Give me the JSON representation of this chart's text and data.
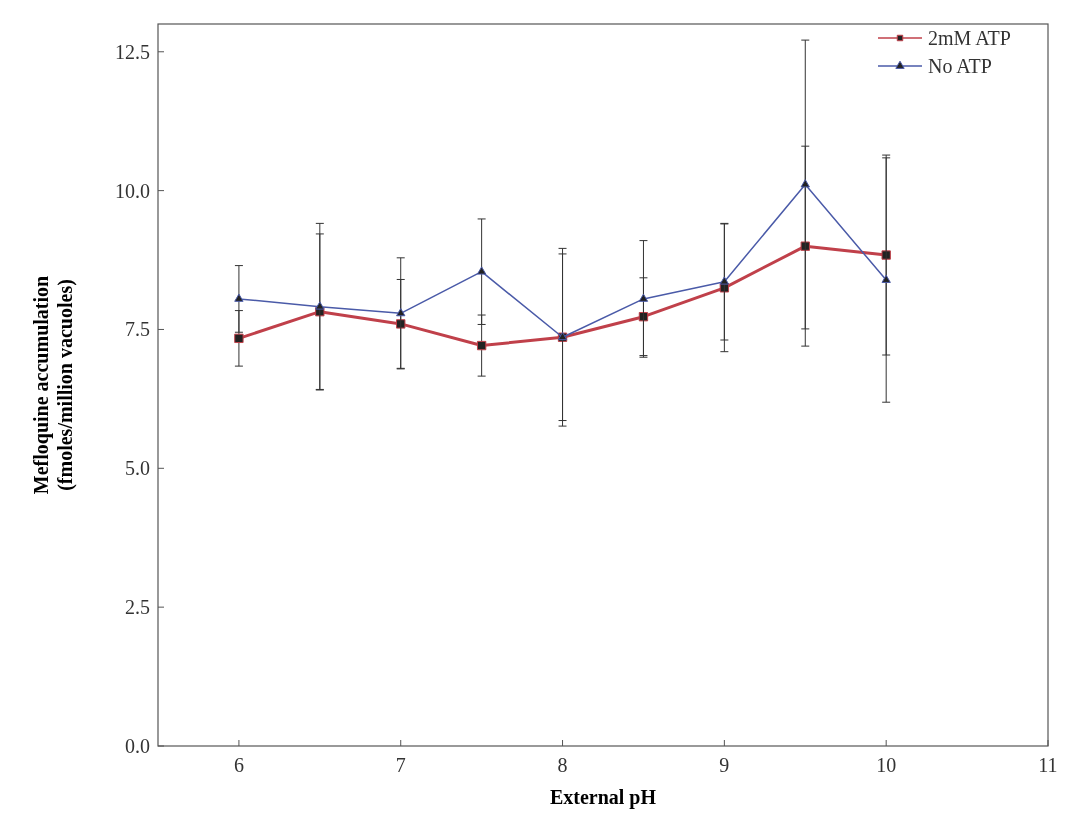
{
  "chart_data": {
    "type": "line",
    "xlabel": "External pH",
    "ylabel": "Mefloquine accumulation\n(fmoles/million vacuoles)",
    "x": [
      6,
      6.5,
      7,
      7.5,
      8,
      8.5,
      9,
      9.5,
      10
    ],
    "series": [
      {
        "name": "2mM ATP",
        "color": "#c0404a",
        "marker": "square",
        "values": [
          7.34,
          7.82,
          7.6,
          7.21,
          7.36,
          7.73,
          8.25,
          9.0,
          8.84
        ],
        "errors": [
          0.5,
          1.4,
          0.8,
          0.55,
          1.5,
          0.7,
          1.15,
          1.8,
          1.8
        ]
      },
      {
        "name": "No ATP",
        "color": "#4a5aa8",
        "marker": "triangle",
        "values": [
          8.05,
          7.91,
          7.79,
          8.54,
          7.36,
          8.05,
          8.36,
          10.11,
          8.39
        ],
        "errors": [
          0.6,
          1.5,
          1.0,
          0.95,
          1.6,
          1.05,
          1.05,
          2.6,
          2.2
        ]
      }
    ],
    "xlim": [
      5.5,
      11
    ],
    "xticks": [
      6,
      7,
      8,
      9,
      10,
      11
    ],
    "ylim": [
      0,
      13
    ],
    "yticks": [
      {
        "value": 0,
        "label": "0.0"
      },
      2.5,
      {
        "value": 5,
        "label": "5.0"
      },
      7.5,
      {
        "value": 10,
        "label": "10.0"
      },
      12.5
    ],
    "legend": "top right",
    "grid": false
  }
}
